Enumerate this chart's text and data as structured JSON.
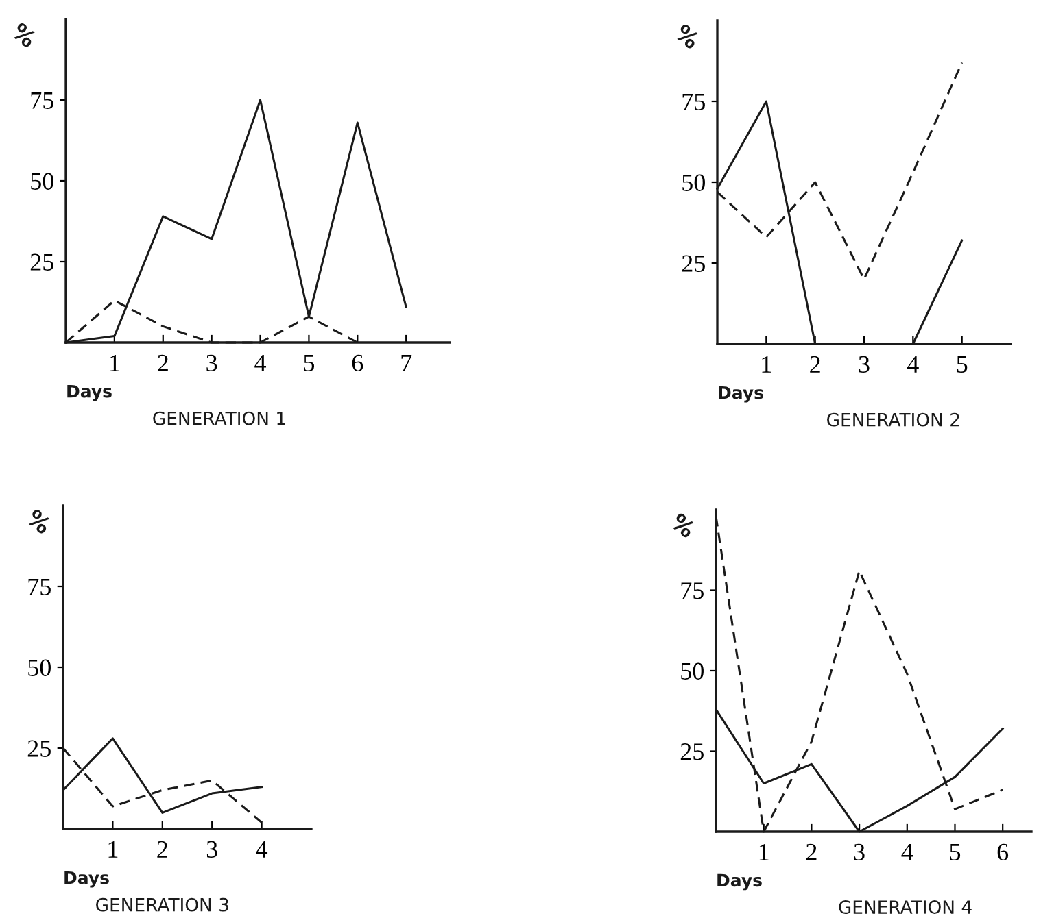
{
  "chart_data": [
    {
      "type": "line",
      "title": "GENERATION 1",
      "xlabel": "Days",
      "ylabel": "%",
      "x": [
        0,
        1,
        2,
        3,
        4,
        5,
        6,
        7
      ],
      "xlim": [
        0,
        7.9
      ],
      "xticks": [
        1,
        2,
        3,
        4,
        5,
        6,
        7
      ],
      "ylim": [
        0,
        100
      ],
      "yticks": [
        25,
        50,
        75
      ],
      "grid": false,
      "series": [
        {
          "color": "#1a1a1a",
          "line_style": "solid",
          "values": [
            0,
            2,
            39,
            32,
            75,
            8,
            68,
            11
          ]
        },
        {
          "color": "#1a1a1a",
          "line_style": "dashed",
          "x": [
            0,
            1,
            2,
            3,
            4,
            5,
            6
          ],
          "values": [
            0,
            13,
            5,
            0,
            0,
            8,
            0
          ]
        }
      ]
    },
    {
      "type": "line",
      "title": "GENERATION 2",
      "xlabel": "Days",
      "ylabel": "%",
      "x": [
        0,
        1,
        2,
        3,
        4,
        5
      ],
      "xlim": [
        0,
        6
      ],
      "xticks": [
        1,
        2,
        3,
        4,
        5
      ],
      "ylim": [
        0,
        100
      ],
      "yticks": [
        25,
        50,
        75
      ],
      "grid": false,
      "series": [
        {
          "color": "#1a1a1a",
          "line_style": "solid",
          "values": [
            48,
            75,
            0,
            0,
            0,
            32
          ]
        },
        {
          "color": "#1a1a1a",
          "line_style": "dashed",
          "values": [
            47,
            33,
            50,
            20,
            53,
            87
          ]
        }
      ]
    },
    {
      "type": "line",
      "title": "GENERATION 3",
      "xlabel": "Days",
      "ylabel": "%",
      "x": [
        0,
        1,
        2,
        3,
        4
      ],
      "xlim": [
        0,
        5
      ],
      "xticks": [
        1,
        2,
        3,
        4
      ],
      "ylim": [
        0,
        100
      ],
      "yticks": [
        25,
        50,
        75
      ],
      "grid": false,
      "series": [
        {
          "color": "#1a1a1a",
          "line_style": "solid",
          "values": [
            12,
            28,
            5,
            11,
            13
          ]
        },
        {
          "color": "#1a1a1a",
          "line_style": "dashed",
          "values": [
            25,
            7,
            12,
            15,
            2
          ]
        }
      ]
    },
    {
      "type": "line",
      "title": "GENERATION 4",
      "xlabel": "Days",
      "ylabel": "%",
      "x": [
        0,
        1,
        2,
        3,
        4,
        5,
        6
      ],
      "xlim": [
        0,
        6.6
      ],
      "xticks": [
        1,
        2,
        3,
        4,
        5,
        6
      ],
      "ylim": [
        0,
        100
      ],
      "yticks": [
        25,
        50,
        75
      ],
      "grid": false,
      "series": [
        {
          "color": "#1a1a1a",
          "line_style": "solid",
          "values": [
            38,
            15,
            21,
            0,
            8,
            17,
            32
          ]
        },
        {
          "color": "#1a1a1a",
          "line_style": "dashed",
          "values": [
            98,
            0,
            28,
            81,
            49,
            7,
            13
          ]
        }
      ]
    }
  ]
}
